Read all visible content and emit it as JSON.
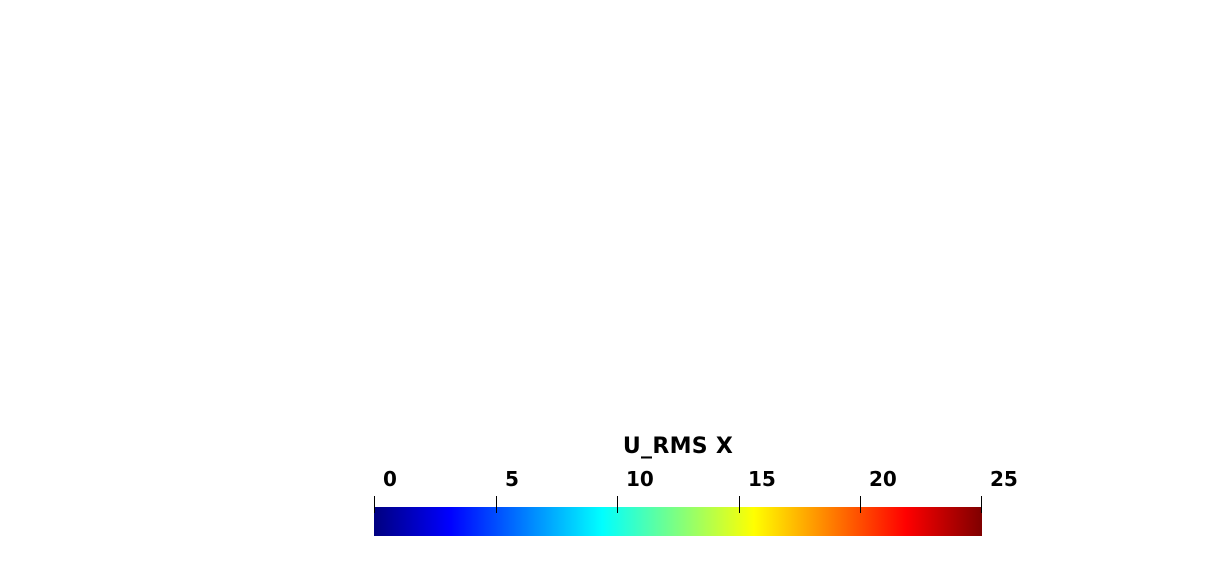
{
  "legend": {
    "title": "U_RMS X",
    "range": [
      0,
      25
    ],
    "colormap": "jet",
    "color_stops": [
      "#00007f",
      "#0000ff",
      "#00ffff",
      "#ffff00",
      "#ff0000",
      "#7f0000"
    ],
    "ticks": [
      {
        "value": 0,
        "label": "0"
      },
      {
        "value": 5,
        "label": "5"
      },
      {
        "value": 10,
        "label": "10"
      },
      {
        "value": 15,
        "label": "15"
      },
      {
        "value": 20,
        "label": "20"
      },
      {
        "value": 25,
        "label": "25"
      }
    ]
  }
}
